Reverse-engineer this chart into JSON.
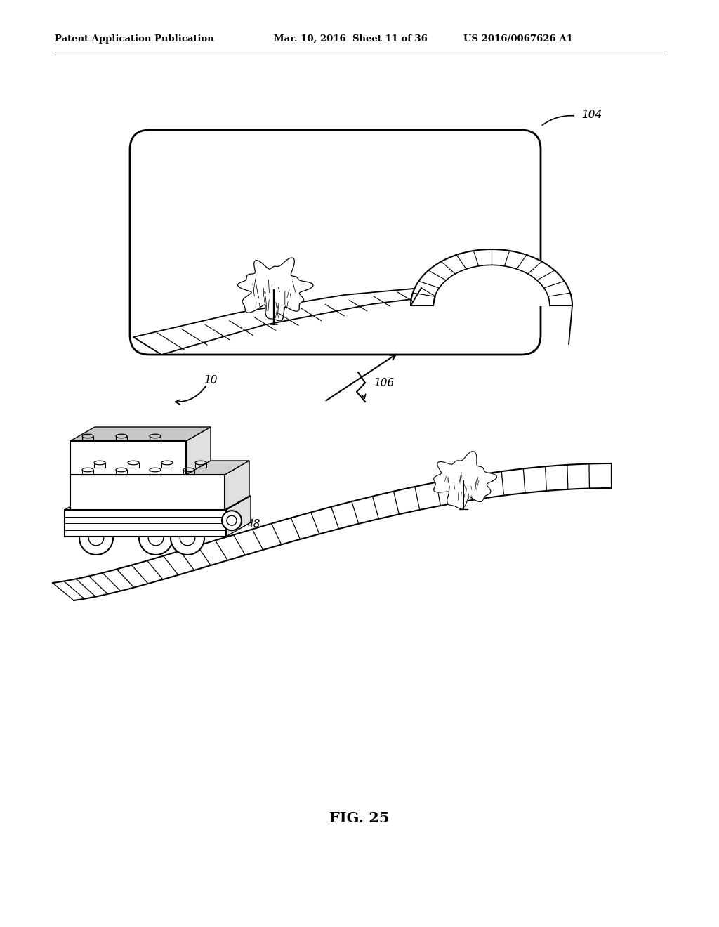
{
  "title_left": "Patent Application Publication",
  "title_mid": "Mar. 10, 2016  Sheet 11 of 36",
  "title_right": "US 2016/0067626 A1",
  "fig_label": "FIG. 25",
  "label_104": "104",
  "label_10": "10",
  "label_106": "106",
  "label_48": "48",
  "bg_color": "#ffffff",
  "line_color": "#000000",
  "title_fontsize": 9.5,
  "fig_label_fontsize": 15
}
